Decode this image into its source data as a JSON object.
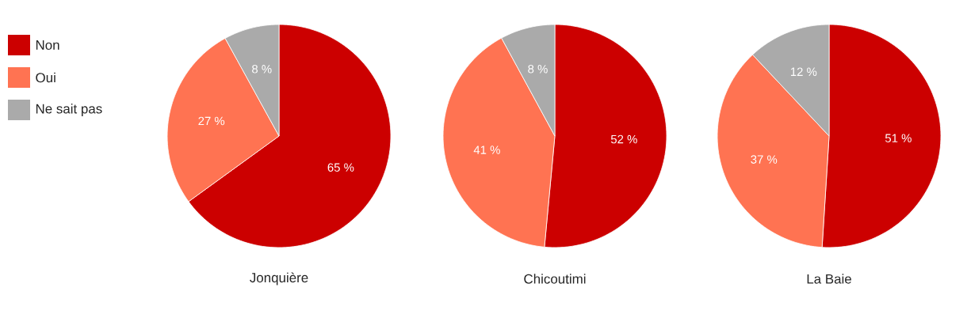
{
  "chart_data": [
    {
      "type": "pie",
      "title": "Jonquière",
      "categories": [
        "Non",
        "Oui",
        "Ne sait pas"
      ],
      "values": [
        65,
        27,
        8
      ],
      "colors": [
        "#cc0000",
        "#ff7352",
        "#aaaaaa"
      ],
      "value_labels": [
        "65 %",
        "27 %",
        "8 %"
      ],
      "legend": "left"
    },
    {
      "type": "pie",
      "title": "Chicoutimi",
      "categories": [
        null,
        null,
        null
      ],
      "values": [
        52,
        41,
        8
      ],
      "colors": [
        "#cc0000",
        "#ff7352",
        "#aaaaaa"
      ],
      "value_labels": [
        "52 %",
        "41 %",
        "8 %"
      ]
    },
    {
      "type": "pie",
      "title": "La Baie",
      "categories": [
        null,
        null,
        null
      ],
      "values": [
        51,
        37,
        12
      ],
      "colors": [
        "#cc0000",
        "#ff7352",
        "#aaaaaa"
      ],
      "value_labels": [
        "51 %",
        "37 %",
        "12 %"
      ]
    }
  ]
}
